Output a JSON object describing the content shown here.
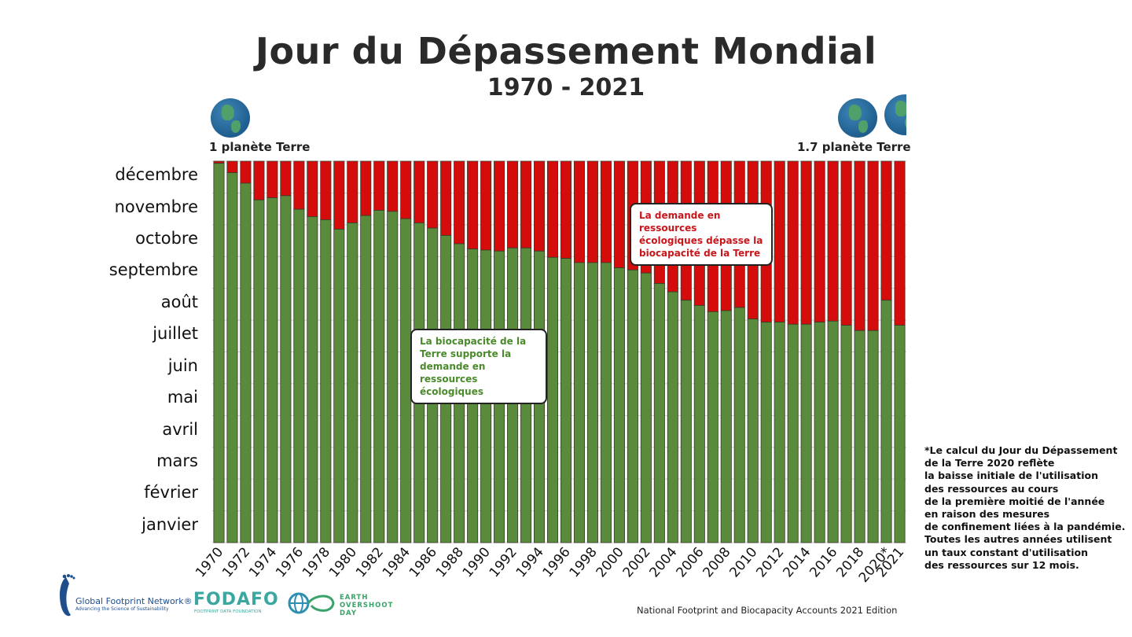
{
  "header": {
    "title": "Jour du Dépassement Mondial",
    "subtitle": "1970 - 2021",
    "left_planet_label": "1 planète Terre",
    "right_planet_label": "1.7 planète Terre"
  },
  "callouts": {
    "overshoot": "La demande en ressources écologiques dépasse la biocapacité de la Terre",
    "biocapacity": "La biocapacité de la Terre supporte la demande en ressources écologiques"
  },
  "footnote": "*Le calcul du Jour du Dépassement\nde la Terre 2020 reflète\nla baisse initiale de l'utilisation\ndes ressources au cours\nde la première moitié de l'année\nen raison des mesures\nde confinement liées à la pandémie.\nToutes les autres années utilisent\nun taux constant d'utilisation\ndes ressources sur 12 mois.",
  "source": "National Footprint and Biocapacity Accounts 2021 Edition",
  "logos": {
    "gfn_name": "Global Footprint Network®",
    "gfn_tagline": "Advancing the Science of Sustainability",
    "fodafo_name": "FODAFO",
    "fodafo_sub": "FOOTPRINT DATA FOUNDATION",
    "eod_name": "EARTH\nOVERSHOOT\nDAY"
  },
  "colors": {
    "within_biocapacity": "#5a8a3c",
    "overshoot": "#d40c0c",
    "bar_outline": "#3a3a2a"
  },
  "chart_data": {
    "type": "bar",
    "stacked": true,
    "title": "Jour du Dépassement Mondial",
    "subtitle": "1970 - 2021",
    "xlabel": "",
    "ylabel": "",
    "y_unit": "day of year",
    "ylim": [
      0,
      365
    ],
    "y_tick_labels": [
      "janvier",
      "février",
      "mars",
      "avril",
      "mai",
      "juin",
      "juillet",
      "août",
      "septembre",
      "octobre",
      "novembre",
      "décembre"
    ],
    "categories": [
      "1970",
      "1971",
      "1972",
      "1973",
      "1974",
      "1975",
      "1976",
      "1977",
      "1978",
      "1979",
      "1980",
      "1981",
      "1982",
      "1983",
      "1984",
      "1985",
      "1986",
      "1987",
      "1988",
      "1989",
      "1990",
      "1991",
      "1992",
      "1993",
      "1994",
      "1995",
      "1996",
      "1997",
      "1998",
      "1999",
      "2000",
      "2001",
      "2002",
      "2003",
      "2004",
      "2005",
      "2006",
      "2007",
      "2008",
      "2009",
      "2010",
      "2011",
      "2012",
      "2013",
      "2014",
      "2015",
      "2016",
      "2017",
      "2018",
      "2019",
      "2020*",
      "2021"
    ],
    "x_tick_labels_shown": [
      "1970",
      "1972",
      "1974",
      "1976",
      "1978",
      "1980",
      "1982",
      "1984",
      "1986",
      "1988",
      "1990",
      "1992",
      "1994",
      "1996",
      "1998",
      "2000",
      "2002",
      "2004",
      "2006",
      "2008",
      "2010",
      "2012",
      "2014",
      "2016",
      "2018",
      "2020*",
      "2021"
    ],
    "series": [
      {
        "name": "La biocapacité de la Terre supporte la demande en ressources écologiques",
        "color": "#5a8a3c",
        "values": [
          363,
          354,
          344,
          328,
          330,
          332,
          319,
          312,
          309,
          300,
          306,
          313,
          318,
          317,
          310,
          306,
          301,
          294,
          286,
          281,
          280,
          279,
          282,
          282,
          279,
          273,
          272,
          268,
          268,
          268,
          263,
          261,
          258,
          248,
          240,
          232,
          227,
          221,
          222,
          225,
          214,
          211,
          211,
          209,
          209,
          211,
          212,
          208,
          203,
          203,
          232,
          208
        ]
      },
      {
        "name": "La demande en ressources écologiques dépasse la biocapacité de la Terre",
        "color": "#d40c0c",
        "fills_to": 365
      }
    ],
    "annotations": [
      "1 planète Terre",
      "1.7 planète Terre"
    ],
    "grid": "horizontal",
    "legend": "callouts"
  }
}
